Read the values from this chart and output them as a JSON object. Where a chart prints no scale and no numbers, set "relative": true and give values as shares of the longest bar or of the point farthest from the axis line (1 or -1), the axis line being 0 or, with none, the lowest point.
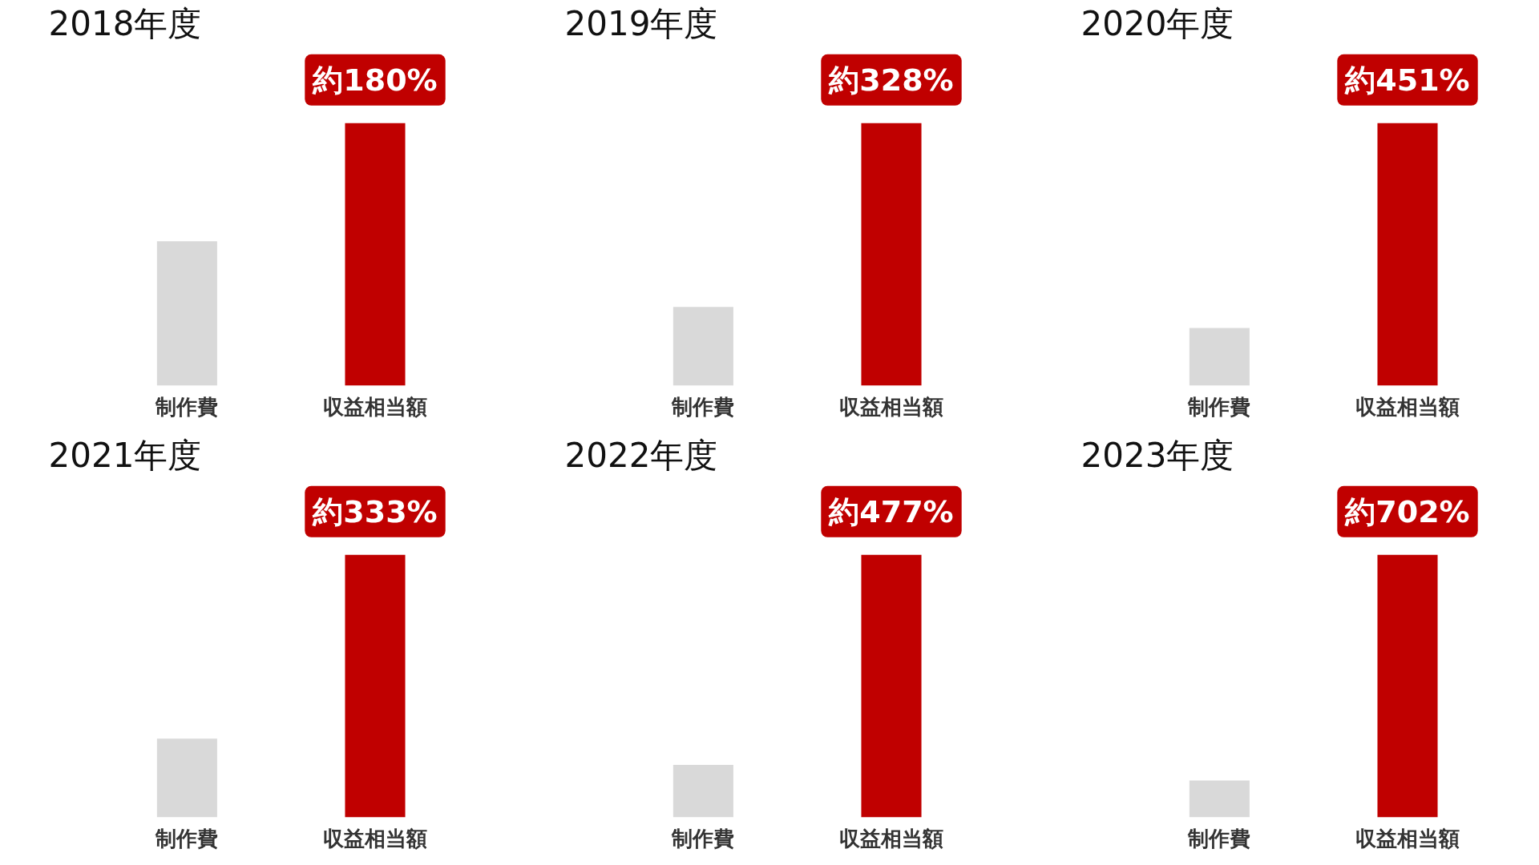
{
  "chart_data": [
    {
      "type": "bar",
      "title": "2018年度",
      "categories": [
        "制作費",
        "収益相当額"
      ],
      "values": [
        0.55,
        1
      ],
      "colors": [
        "#d9d9d9",
        "#c00000"
      ],
      "relative": true,
      "annotations": [
        {
          "text": "約180%",
          "x": "収益相当額",
          "y": 1
        }
      ]
    },
    {
      "type": "bar",
      "title": "2019年度",
      "categories": [
        "制作費",
        "収益相当額"
      ],
      "values": [
        0.3,
        1
      ],
      "colors": [
        "#d9d9d9",
        "#c00000"
      ],
      "relative": true,
      "annotations": [
        {
          "text": "約328%",
          "x": "収益相当額",
          "y": 1
        }
      ]
    },
    {
      "type": "bar",
      "title": "2020年度",
      "categories": [
        "制作費",
        "収益相当額"
      ],
      "values": [
        0.22,
        1
      ],
      "colors": [
        "#d9d9d9",
        "#c00000"
      ],
      "relative": true,
      "annotations": [
        {
          "text": "約451%",
          "x": "収益相当額",
          "y": 1
        }
      ]
    },
    {
      "type": "bar",
      "title": "2021年度",
      "categories": [
        "制作費",
        "収益相当額"
      ],
      "values": [
        0.3,
        1
      ],
      "colors": [
        "#d9d9d9",
        "#c00000"
      ],
      "relative": true,
      "annotations": [
        {
          "text": "約333%",
          "x": "収益相当額",
          "y": 1
        }
      ]
    },
    {
      "type": "bar",
      "title": "2022年度",
      "categories": [
        "制作費",
        "収益相当額"
      ],
      "values": [
        0.2,
        1
      ],
      "colors": [
        "#d9d9d9",
        "#c00000"
      ],
      "relative": true,
      "annotations": [
        {
          "text": "約477%",
          "x": "収益相当額",
          "y": 1
        }
      ]
    },
    {
      "type": "bar",
      "title": "2023年度",
      "categories": [
        "制作費",
        "収益相当額"
      ],
      "values": [
        0.14,
        1
      ],
      "colors": [
        "#d9d9d9",
        "#c00000"
      ],
      "relative": true,
      "annotations": [
        {
          "text": "約702%",
          "x": "収益相当額",
          "y": 1
        }
      ]
    }
  ]
}
